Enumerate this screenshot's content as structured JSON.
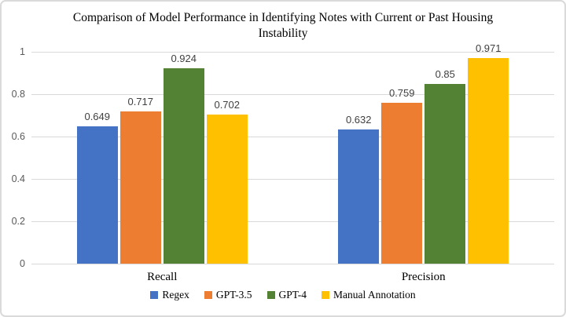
{
  "chart_data": {
    "type": "bar",
    "title": "Comparison of Model Performance in Identifying Notes with Current or Past Housing Instability",
    "categories": [
      "Recall",
      "Precision"
    ],
    "series": [
      {
        "name": "Regex",
        "color": "#4472C4",
        "values": [
          0.649,
          0.632
        ]
      },
      {
        "name": "GPT-3.5",
        "color": "#ED7D31",
        "values": [
          0.717,
          0.759
        ]
      },
      {
        "name": "GPT-4",
        "color": "#548235",
        "values": [
          0.924,
          0.85
        ]
      },
      {
        "name": "Manual Annotation",
        "color": "#FFC000",
        "values": [
          0.702,
          0.971
        ]
      }
    ],
    "y_axis": {
      "min": 0,
      "max": 1,
      "tick_values": [
        1,
        0.8,
        0.6,
        0.4,
        0.2,
        0
      ],
      "tick_labels": [
        "1",
        "0.8",
        "0.6",
        "0.4",
        "0.2",
        "0"
      ]
    },
    "grid": true,
    "legend_position": "bottom",
    "colors": {
      "gridline": "#D9D9D9",
      "axis_text": "#595959",
      "data_label_text": "#404040",
      "frame_border": "#DADADA"
    }
  }
}
